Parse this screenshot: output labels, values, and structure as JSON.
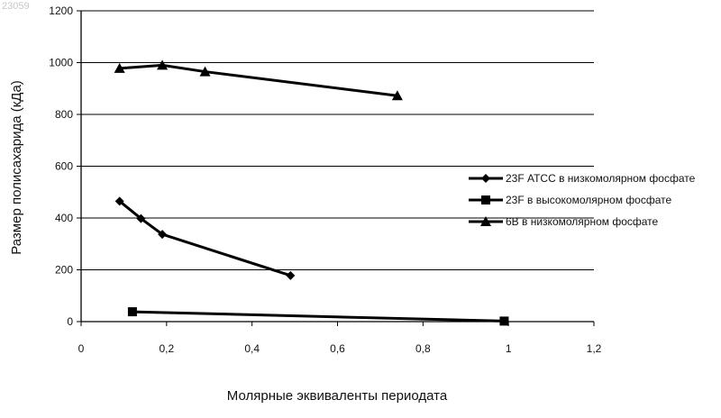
{
  "watermark": "23059",
  "chart_data": {
    "type": "line",
    "title": "",
    "xlabel": "Молярные эквиваленты периодата",
    "ylabel": "Размер полисахарида (кДа)",
    "xlim": [
      0,
      1.2
    ],
    "ylim": [
      0,
      1200
    ],
    "x_ticks": [
      0,
      0.2,
      0.4,
      0.6,
      0.8,
      1,
      1.2
    ],
    "x_tick_labels": [
      "0",
      "0,2",
      "0,4",
      "0,6",
      "0,8",
      "1",
      "1,2"
    ],
    "y_ticks": [
      0,
      200,
      400,
      600,
      800,
      1000,
      1200
    ],
    "y_tick_labels": [
      "0",
      "200",
      "400",
      "600",
      "800",
      "1000",
      "1200"
    ],
    "grid": "horizontal",
    "legend_position": "right",
    "series": [
      {
        "name": "23F АТСС в низкомолярном фосфате",
        "marker": "diamond",
        "x": [
          0.09,
          0.14,
          0.19,
          0.49
        ],
        "y": [
          465,
          398,
          337,
          178
        ]
      },
      {
        "name": "23F в высокомолярном фосфате",
        "marker": "square",
        "x": [
          0.12,
          0.99
        ],
        "y": [
          38,
          2
        ]
      },
      {
        "name": "6B в низкомолярном фосфате",
        "marker": "triangle",
        "x": [
          0.09,
          0.19,
          0.29,
          0.74
        ],
        "y": [
          978,
          990,
          965,
          872
        ]
      }
    ]
  }
}
